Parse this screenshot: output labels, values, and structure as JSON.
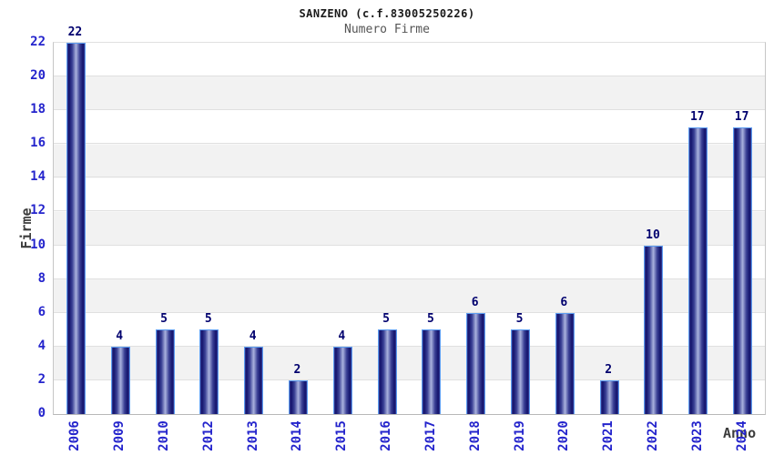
{
  "header": {
    "title": "SANZENO (c.f.83005250226)",
    "subtitle": "Numero Firme"
  },
  "chart_data": {
    "type": "bar",
    "title": "SANZENO (c.f.83005250226)",
    "subtitle": "Numero Firme",
    "categories": [
      "2006",
      "2009",
      "2010",
      "2012",
      "2013",
      "2014",
      "2015",
      "2016",
      "2017",
      "2018",
      "2019",
      "2020",
      "2021",
      "2022",
      "2023",
      "2024"
    ],
    "values": [
      22,
      4,
      5,
      5,
      4,
      2,
      4,
      5,
      5,
      6,
      5,
      6,
      2,
      10,
      17,
      17
    ],
    "xlabel": "Anno",
    "ylabel": "Firme",
    "ylim": [
      0,
      22
    ],
    "yticks": [
      0,
      2,
      4,
      6,
      8,
      10,
      12,
      14,
      16,
      18,
      20,
      22
    ],
    "grid": true,
    "legend_position": "none",
    "colors": {
      "bar_dark": "#12126b",
      "bar_mid": "#3a4095",
      "bar_light": "#aab2de",
      "bar_border": "#5c9df2",
      "tick_label": "#2424cc",
      "value_label": "#00006e",
      "band_gray": "#f2f2f2",
      "gridline": "#e0e0e0",
      "axis_title": "#3c3c3c"
    }
  }
}
